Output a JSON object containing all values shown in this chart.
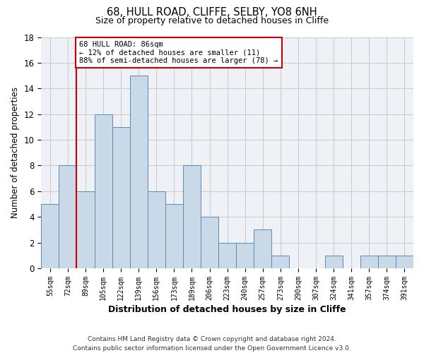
{
  "title": "68, HULL ROAD, CLIFFE, SELBY, YO8 6NH",
  "subtitle": "Size of property relative to detached houses in Cliffe",
  "xlabel": "Distribution of detached houses by size in Cliffe",
  "ylabel": "Number of detached properties",
  "categories": [
    "55sqm",
    "72sqm",
    "89sqm",
    "105sqm",
    "122sqm",
    "139sqm",
    "156sqm",
    "173sqm",
    "189sqm",
    "206sqm",
    "223sqm",
    "240sqm",
    "257sqm",
    "273sqm",
    "290sqm",
    "307sqm",
    "324sqm",
    "341sqm",
    "357sqm",
    "374sqm",
    "391sqm"
  ],
  "values": [
    5,
    8,
    6,
    12,
    11,
    15,
    6,
    5,
    8,
    4,
    2,
    2,
    3,
    1,
    0,
    0,
    1,
    0,
    1,
    1,
    1
  ],
  "bar_color": "#c9d9e8",
  "bar_edge_color": "#5a8ab5",
  "vline_color": "#cc0000",
  "annotation_box_text": "68 HULL ROAD: 86sqm\n← 12% of detached houses are smaller (11)\n88% of semi-detached houses are larger (78) →",
  "annotation_box_color": "#cc0000",
  "ylim": [
    0,
    18
  ],
  "yticks": [
    0,
    2,
    4,
    6,
    8,
    10,
    12,
    14,
    16,
    18
  ],
  "grid_color": "#cccccc",
  "bg_color": "#eef2f7",
  "footer": "Contains HM Land Registry data © Crown copyright and database right 2024.\nContains public sector information licensed under the Open Government Licence v3.0."
}
